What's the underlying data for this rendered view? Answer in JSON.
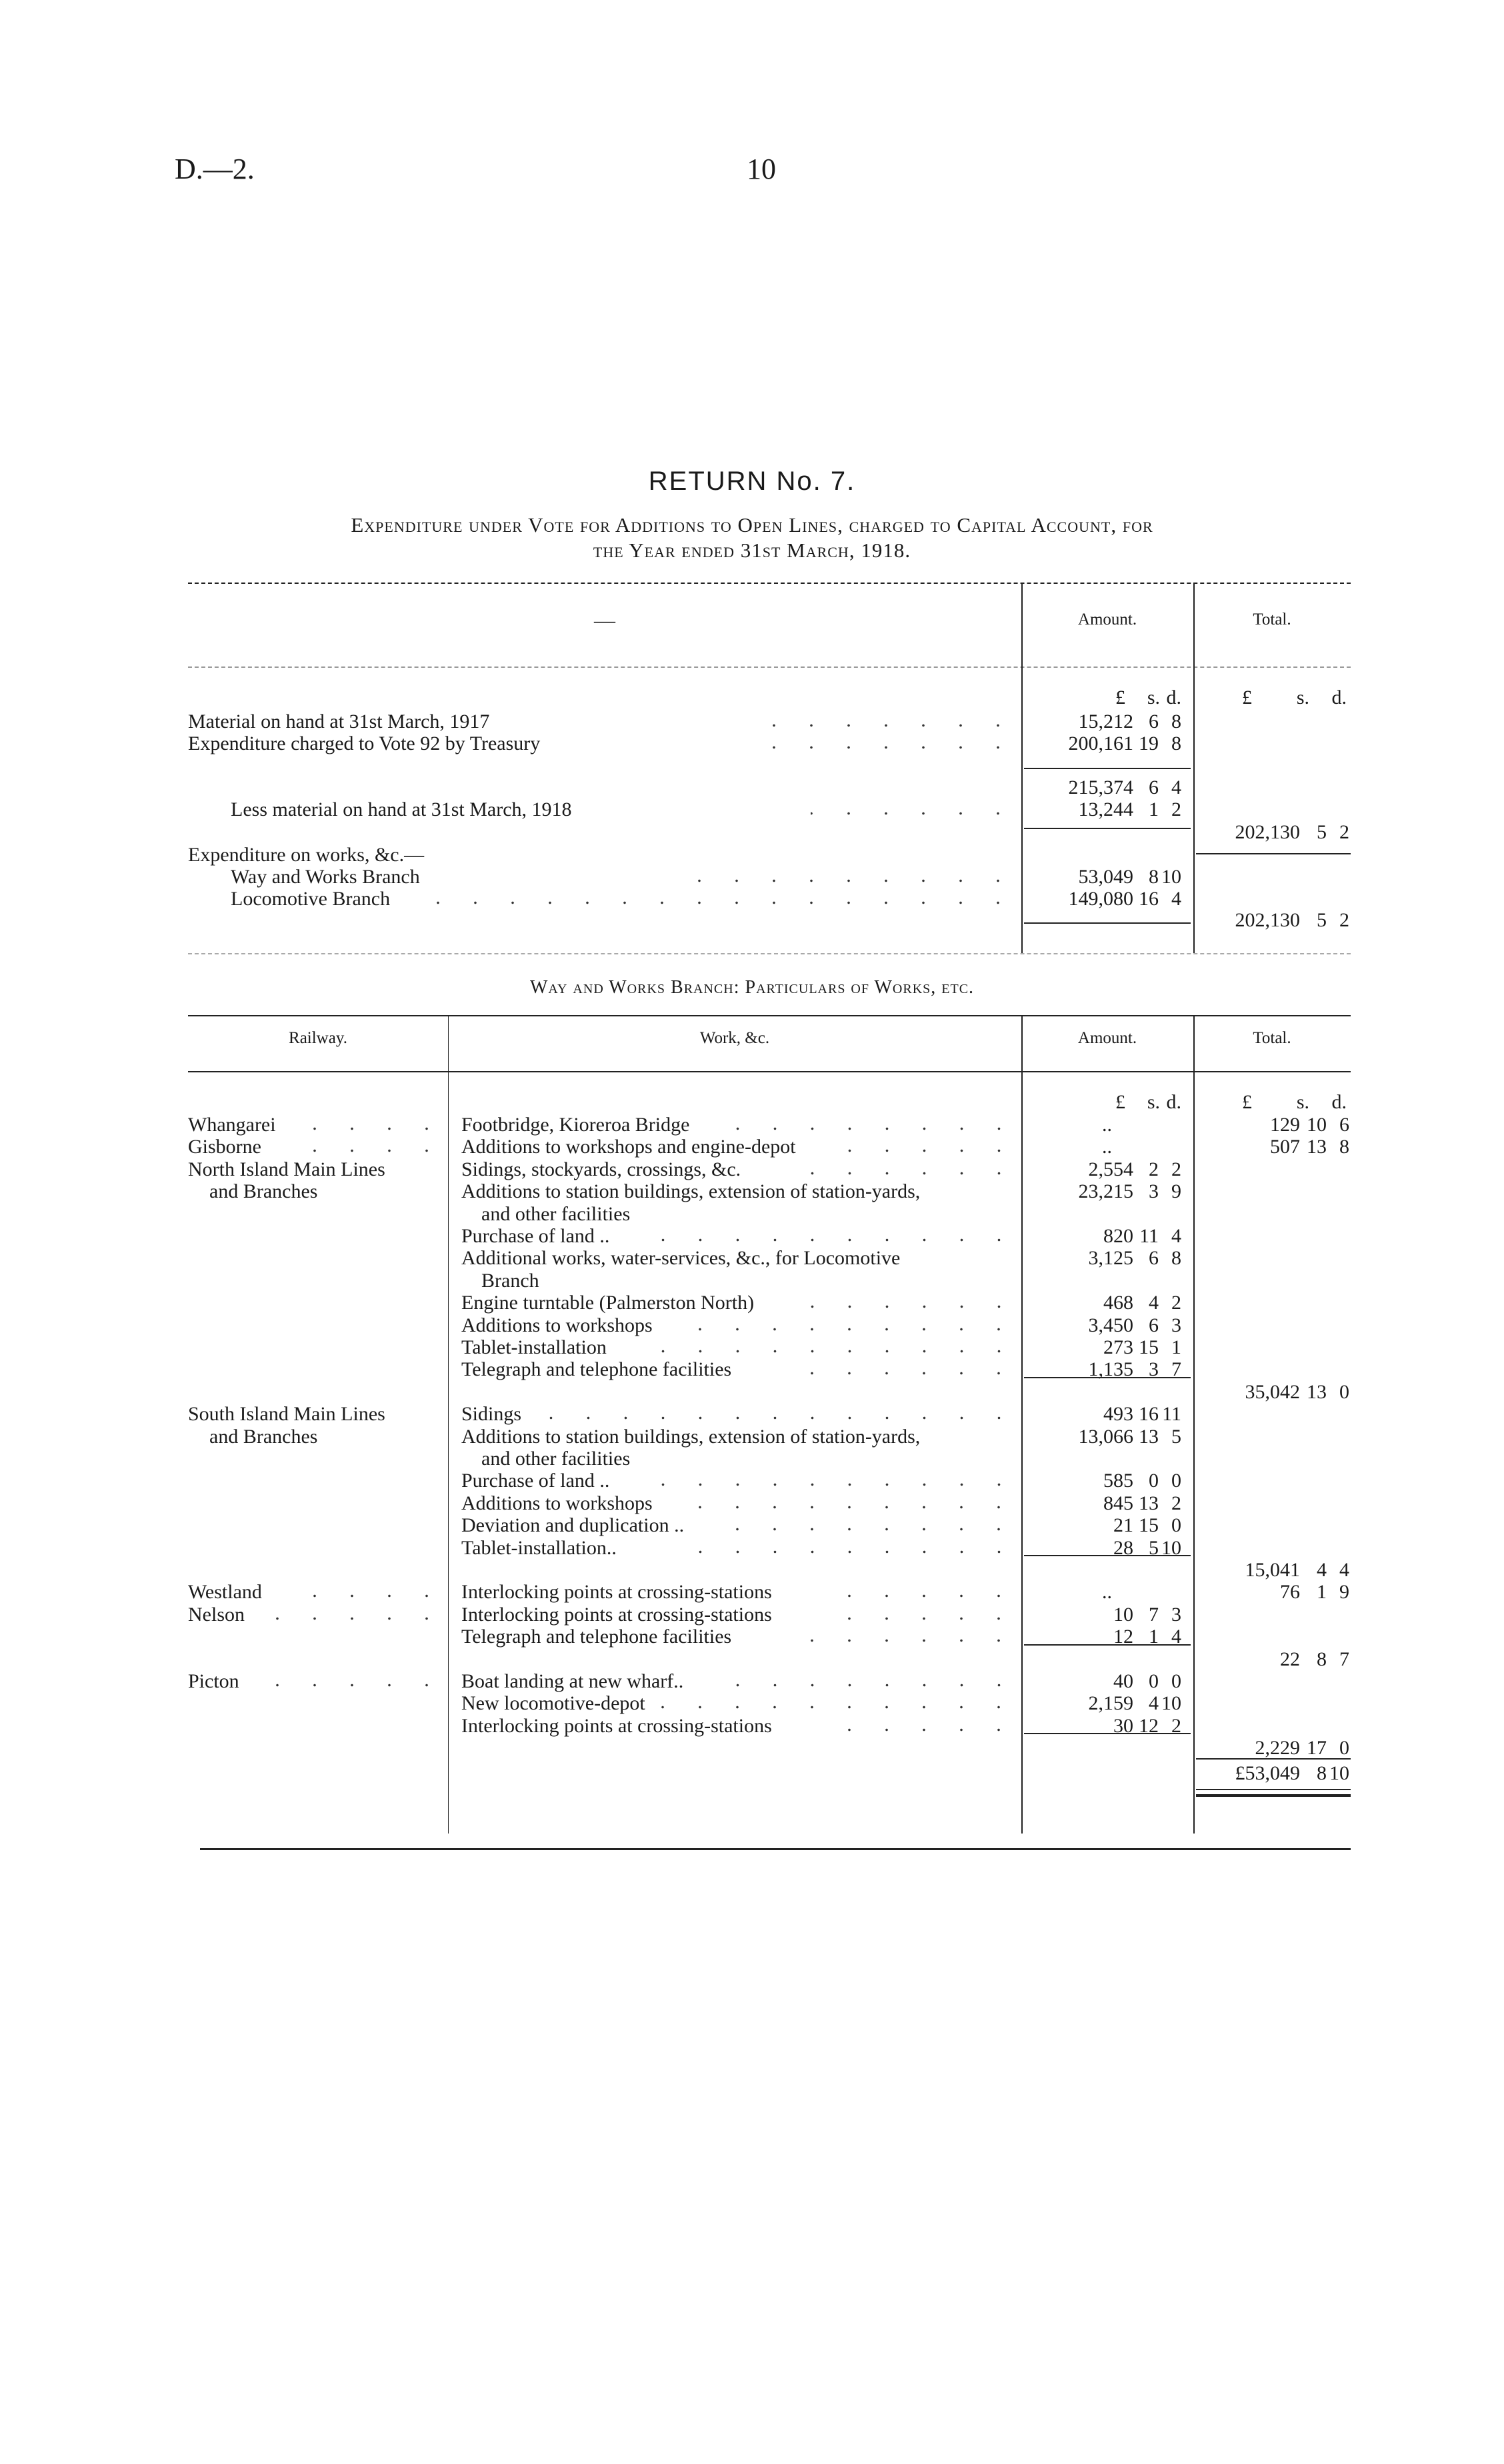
{
  "header": {
    "ref": "D.—2.",
    "page": "10"
  },
  "title": "RETURN No. 7.",
  "subtitle": [
    "Expenditure under Vote for Additions to Open Lines, charged to Capital Account, for",
    "the Year ended 31st March, 1918."
  ],
  "summary": {
    "headers": {
      "desc": "—",
      "amount": "Amount.",
      "total": "Total."
    },
    "units": [
      "£",
      "s.",
      "d."
    ],
    "rows": [
      {
        "label": "Material on hand at 31st March, 1917",
        "amount": [
          "15,212",
          "6",
          "8"
        ]
      },
      {
        "label": "Expenditure charged to Vote 92 by Treasury",
        "amount": [
          "200,161",
          "19",
          "8"
        ]
      },
      {
        "label": "",
        "amount": [
          "215,374",
          "6",
          "4"
        ]
      },
      {
        "label": "Less material on hand at 31st March, 1918",
        "amount": [
          "13,244",
          "1",
          "2"
        ]
      },
      {
        "label": "",
        "total": [
          "202,130",
          "5",
          "2"
        ]
      },
      {
        "label": "Expenditure on works, &c.—"
      },
      {
        "label": "Way and Works Branch",
        "amount": [
          "53,049",
          "8",
          "10"
        ]
      },
      {
        "label": "Locomotive Branch",
        "amount": [
          "149,080",
          "16",
          "4"
        ]
      },
      {
        "label": "",
        "total": [
          "202,130",
          "5",
          "2"
        ]
      }
    ]
  },
  "works": {
    "section_title": "Way and Works Branch: Particulars of Works, etc.",
    "headers": {
      "railway": "Railway.",
      "work": "Work, &c.",
      "amount": "Amount.",
      "total": "Total."
    },
    "units": [
      "£",
      "s.",
      "d."
    ],
    "groups": [
      {
        "railway": [
          "Whangarei"
        ],
        "items": [
          {
            "work": [
              "Footbridge, Kioreroa Bridge"
            ],
            "amount": [
              ".."
            ]
          }
        ],
        "total": [
          "129",
          "10",
          "6"
        ],
        "inline_total": true
      },
      {
        "railway": [
          "Gisborne"
        ],
        "items": [
          {
            "work": [
              "Additions to workshops and engine-depot"
            ],
            "amount": [
              ".."
            ]
          }
        ],
        "total": [
          "507",
          "13",
          "8"
        ],
        "inline_total": true
      },
      {
        "railway": [
          "North Island Main Lines",
          "and Branches"
        ],
        "items": [
          {
            "work": [
              "Sidings, stockyards, crossings, &c."
            ],
            "amount": [
              "2,554",
              "2",
              "2"
            ]
          },
          {
            "work": [
              "Additions to station buildings, extension of station-yards,",
              "and other facilities"
            ],
            "amount": [
              "23,215",
              "3",
              "9"
            ]
          },
          {
            "work": [
              "Purchase of land .."
            ],
            "amount": [
              "820",
              "11",
              "4"
            ]
          },
          {
            "work": [
              "Additional works, water-services, &c., for Locomotive",
              "Branch"
            ],
            "amount": [
              "3,125",
              "6",
              "8"
            ]
          },
          {
            "work": [
              "Engine turntable (Palmerston North)"
            ],
            "amount": [
              "468",
              "4",
              "2"
            ]
          },
          {
            "work": [
              "Additions to workshops"
            ],
            "amount": [
              "3,450",
              "6",
              "3"
            ]
          },
          {
            "work": [
              "Tablet-installation"
            ],
            "amount": [
              "273",
              "15",
              "1"
            ]
          },
          {
            "work": [
              "Telegraph and telephone facilities"
            ],
            "amount": [
              "1,135",
              "3",
              "7"
            ]
          }
        ],
        "total": [
          "35,042",
          "13",
          "0"
        ]
      },
      {
        "railway": [
          "South Island Main Lines",
          "and Branches"
        ],
        "items": [
          {
            "work": [
              "Sidings"
            ],
            "amount": [
              "493",
              "16",
              "11"
            ]
          },
          {
            "work": [
              "Additions to station buildings, extension of station-yards,",
              "and other facilities"
            ],
            "amount": [
              "13,066",
              "13",
              "5"
            ]
          },
          {
            "work": [
              "Purchase of land .."
            ],
            "amount": [
              "585",
              "0",
              "0"
            ]
          },
          {
            "work": [
              "Additions to workshops"
            ],
            "amount": [
              "845",
              "13",
              "2"
            ]
          },
          {
            "work": [
              "Deviation and duplication .."
            ],
            "amount": [
              "21",
              "15",
              "0"
            ]
          },
          {
            "work": [
              "Tablet-installation.."
            ],
            "amount": [
              "28",
              "5",
              "10"
            ]
          }
        ],
        "total": [
          "15,041",
          "4",
          "4"
        ]
      },
      {
        "railway": [
          "Westland"
        ],
        "items": [
          {
            "work": [
              "Interlocking points at crossing-stations"
            ],
            "amount": [
              ".."
            ]
          }
        ],
        "total": [
          "76",
          "1",
          "9"
        ],
        "inline_total": true
      },
      {
        "railway": [
          "Nelson"
        ],
        "items": [
          {
            "work": [
              "Interlocking points at crossing-stations"
            ],
            "amount": [
              "10",
              "7",
              "3"
            ]
          },
          {
            "work": [
              "Telegraph and telephone facilities"
            ],
            "amount": [
              "12",
              "1",
              "4"
            ]
          }
        ],
        "total": [
          "22",
          "8",
          "7"
        ]
      },
      {
        "railway": [
          "Picton"
        ],
        "items": [
          {
            "work": [
              "Boat landing at new wharf.."
            ],
            "amount": [
              "40",
              "0",
              "0"
            ]
          },
          {
            "work": [
              "New locomotive-depot"
            ],
            "amount": [
              "2,159",
              "4",
              "10"
            ]
          },
          {
            "work": [
              "Interlocking points at crossing-stations"
            ],
            "amount": [
              "30",
              "12",
              "2"
            ]
          }
        ],
        "total": [
          "2,229",
          "17",
          "0"
        ]
      }
    ],
    "grand_total": [
      "£53,049",
      "8",
      "10"
    ]
  }
}
